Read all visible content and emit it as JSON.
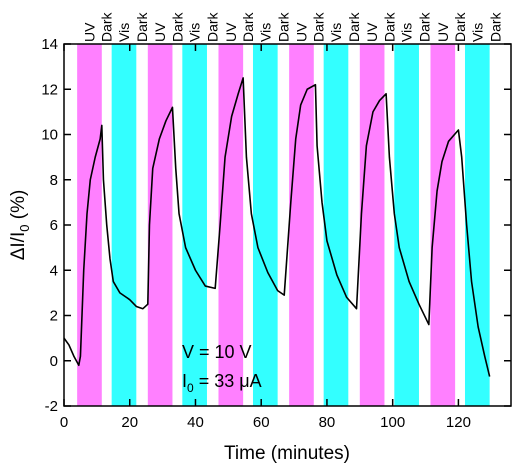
{
  "chart_data": {
    "type": "line",
    "xlabel": "Time (minutes)",
    "ylabel": {
      "main": "ΔI/I",
      "sub": "0",
      "tail": " (%)"
    },
    "annotations": [
      {
        "text": "V = 10 V"
      },
      {
        "main": "I",
        "sub": "0",
        "tail": " = 33 μA"
      }
    ],
    "xlim": [
      0,
      136
    ],
    "xticks": [
      0,
      20,
      40,
      60,
      80,
      100,
      120
    ],
    "ylim": [
      -2,
      14
    ],
    "yticks": [
      -2,
      0,
      2,
      4,
      6,
      8,
      10,
      12,
      14
    ],
    "color": "#000000",
    "regions": [
      {
        "label": "UV",
        "start": 4,
        "end": 11.5,
        "color": "#ff80ff"
      },
      {
        "label": "Dark",
        "start": 11.5,
        "end": 14.5
      },
      {
        "label": "Vis",
        "start": 14.5,
        "end": 22,
        "color": "#33ffff"
      },
      {
        "label": "Dark",
        "start": 22,
        "end": 25.5
      },
      {
        "label": "UV",
        "start": 25.5,
        "end": 33,
        "color": "#ff80ff"
      },
      {
        "label": "Dark",
        "start": 33,
        "end": 36
      },
      {
        "label": "Vis",
        "start": 36,
        "end": 43.5,
        "color": "#33ffff"
      },
      {
        "label": "Dark",
        "start": 43.5,
        "end": 47
      },
      {
        "label": "UV",
        "start": 47,
        "end": 54.5,
        "color": "#ff80ff"
      },
      {
        "label": "Dark",
        "start": 54.5,
        "end": 57.5
      },
      {
        "label": "Vis",
        "start": 57.5,
        "end": 65,
        "color": "#33ffff"
      },
      {
        "label": "Dark",
        "start": 65,
        "end": 68.5
      },
      {
        "label": "UV",
        "start": 68.5,
        "end": 76,
        "color": "#ff80ff"
      },
      {
        "label": "Dark",
        "start": 76,
        "end": 79
      },
      {
        "label": "Vis",
        "start": 79,
        "end": 86.5,
        "color": "#33ffff"
      },
      {
        "label": "Dark",
        "start": 86.5,
        "end": 90
      },
      {
        "label": "UV",
        "start": 90,
        "end": 97.5,
        "color": "#ff80ff"
      },
      {
        "label": "Dark",
        "start": 97.5,
        "end": 100.5
      },
      {
        "label": "Vis",
        "start": 100.5,
        "end": 108,
        "color": "#33ffff"
      },
      {
        "label": "Dark",
        "start": 108,
        "end": 111.5
      },
      {
        "label": "UV",
        "start": 111.5,
        "end": 119,
        "color": "#ff80ff"
      },
      {
        "label": "Dark",
        "start": 119,
        "end": 122
      },
      {
        "label": "Vis",
        "start": 122,
        "end": 129.5,
        "color": "#33ffff"
      },
      {
        "label": "Dark",
        "start": 129.5,
        "end": 133
      }
    ],
    "x": [
      0,
      1.5,
      3,
      4.5,
      5,
      6,
      7,
      8,
      9.5,
      11,
      11.5,
      12,
      13,
      14,
      15,
      17,
      20,
      22,
      24,
      25.5,
      26,
      27,
      29,
      31,
      33,
      34,
      35,
      37,
      40,
      43,
      46,
      47.5,
      49,
      51,
      53,
      54.5,
      55.5,
      57,
      59,
      62,
      65,
      67,
      69,
      70.5,
      72,
      74,
      76.5,
      77,
      78.5,
      80,
      83,
      86,
      89,
      90.5,
      92,
      94,
      96,
      98,
      99,
      100.5,
      102,
      105,
      108,
      111,
      112,
      113.5,
      115,
      117,
      120,
      121,
      122.5,
      124,
      126,
      128,
      129.5
    ],
    "values": [
      1.0,
      0.7,
      0.2,
      -0.2,
      0.2,
      4.0,
      6.5,
      8.0,
      9.0,
      9.8,
      10.4,
      8.0,
      6.0,
      4.5,
      3.5,
      3.0,
      2.7,
      2.4,
      2.3,
      2.5,
      6.0,
      8.5,
      9.8,
      10.6,
      11.2,
      8.5,
      6.5,
      5.0,
      4.0,
      3.3,
      3.2,
      6.0,
      9.0,
      10.8,
      11.8,
      12.5,
      9.0,
      6.5,
      5.0,
      3.9,
      3.1,
      2.9,
      7.0,
      9.8,
      11.3,
      12.0,
      12.2,
      9.5,
      7.0,
      5.3,
      3.8,
      2.8,
      2.3,
      6.5,
      9.5,
      11.0,
      11.5,
      11.8,
      9.0,
      6.5,
      5.0,
      3.5,
      2.5,
      1.6,
      5.0,
      7.5,
      8.8,
      9.7,
      10.2,
      9.0,
      6.0,
      3.5,
      1.5,
      0.2,
      -0.7
    ]
  }
}
